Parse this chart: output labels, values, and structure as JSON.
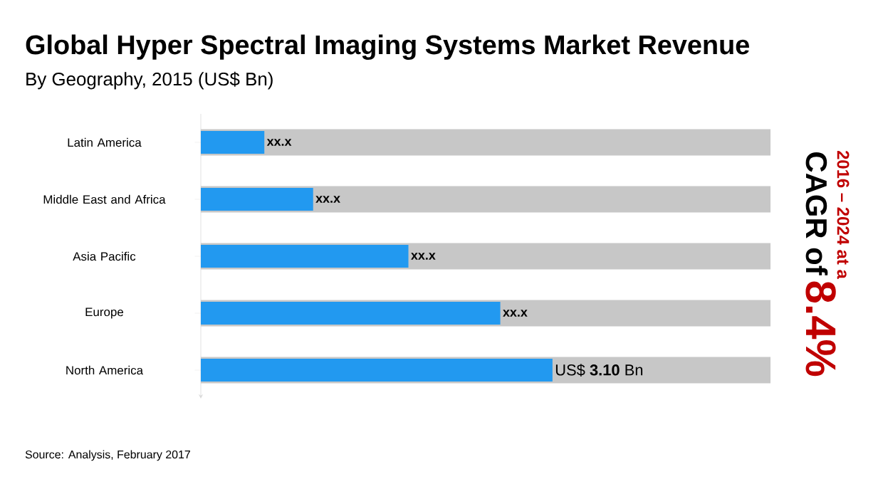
{
  "chart_data": {
    "type": "bar",
    "orientation": "horizontal",
    "title": "Global Hyper Spectral Imaging Systems Market Revenue",
    "subtitle": "By Geography, 2015 (US$ Bn)",
    "categories": [
      "Latin America",
      "Middle East and Africa",
      "Asia Pacific",
      "Europe",
      "North America"
    ],
    "values": [
      0.56,
      0.99,
      1.83,
      2.64,
      3.1
    ],
    "value_labels": [
      "xx.x",
      "xx.x",
      "xx.x",
      "xx.x",
      "US$ **3.10** Bn"
    ],
    "color": "#2299f0",
    "annotations": [
      "Source: Analysis, February 2017",
      "2016 – 2024 at a",
      "CAGR of",
      "8.4%"
    ]
  }
}
